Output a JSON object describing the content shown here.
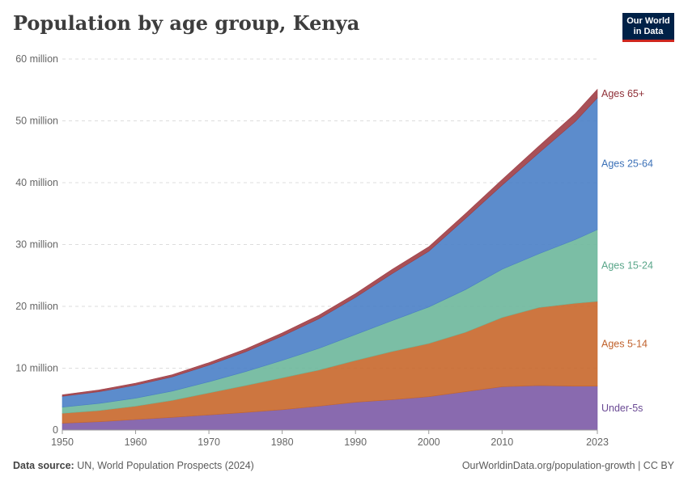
{
  "header": {
    "title": "Population by age group, Kenya",
    "logo_line1": "Our World",
    "logo_line2": "in Data"
  },
  "footer": {
    "source_label": "Data source:",
    "source_text": "UN, World Population Prospects (2024)",
    "url_text": "OurWorldinData.org/population-growth | CC BY"
  },
  "chart_data": {
    "type": "area",
    "stacked": true,
    "title": "Population by age group, Kenya",
    "xlabel": "",
    "ylabel": "",
    "x": [
      1950,
      1955,
      1960,
      1965,
      1970,
      1975,
      1980,
      1985,
      1990,
      1995,
      2000,
      2005,
      2010,
      2015,
      2020,
      2023
    ],
    "x_ticks": [
      1950,
      1960,
      1970,
      1980,
      1990,
      2000,
      2010,
      2023
    ],
    "x_tick_labels": [
      "1950",
      "1960",
      "1970",
      "1980",
      "1990",
      "2000",
      "2010",
      "2023"
    ],
    "ylim": [
      0,
      60000000
    ],
    "y_ticks": [
      0,
      10000000,
      20000000,
      30000000,
      40000000,
      50000000,
      60000000
    ],
    "y_tick_labels": [
      "0",
      "10 million",
      "20 million",
      "30 million",
      "40 million",
      "50 million",
      "60 million"
    ],
    "grid": true,
    "legend_position": "right-inline",
    "series": [
      {
        "name": "Under-5s",
        "color": "#7c5aa6",
        "values": [
          1100000,
          1350000,
          1700000,
          2050000,
          2450000,
          2850000,
          3300000,
          3850000,
          4500000,
          4900000,
          5400000,
          6200000,
          7000000,
          7200000,
          7100000,
          7100000
        ]
      },
      {
        "name": "Ages 5-14",
        "color": "#c8672b",
        "values": [
          1600000,
          1800000,
          2150000,
          2750000,
          3550000,
          4350000,
          5150000,
          5850000,
          6750000,
          7800000,
          8600000,
          9600000,
          11200000,
          12600000,
          13400000,
          13700000
        ]
      },
      {
        "name": "Ages 15-24",
        "color": "#6db79b",
        "values": [
          1000000,
          1150000,
          1300000,
          1500000,
          1800000,
          2250000,
          2800000,
          3500000,
          4200000,
          5000000,
          5900000,
          6900000,
          7800000,
          8700000,
          10300000,
          11600000
        ]
      },
      {
        "name": "Ages 25-64",
        "color": "#4a7fc6",
        "values": [
          1750000,
          1900000,
          2100000,
          2300000,
          2700000,
          3200000,
          3950000,
          4800000,
          6000000,
          7600000,
          9000000,
          11500000,
          13600000,
          16300000,
          19100000,
          21300000
        ]
      },
      {
        "name": "Ages 65+",
        "color": "#9f3d45",
        "values": [
          250000,
          280000,
          320000,
          360000,
          400000,
          450000,
          500000,
          560000,
          620000,
          680000,
          730000,
          800000,
          900000,
          1100000,
          1300000,
          1400000
        ]
      }
    ]
  }
}
